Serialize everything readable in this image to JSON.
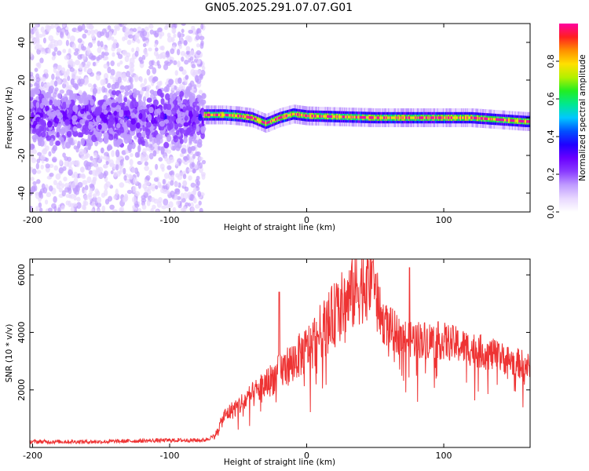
{
  "title": "GN05.2025.291.07.07.G01",
  "chart_data": [
    {
      "type": "heatmap",
      "name": "spectrogram",
      "title": "GN05.2025.291.07.07.G01",
      "xlabel": "Height of straight line (km)",
      "ylabel": "Frequency (Hz)",
      "xlim": [
        -202,
        163
      ],
      "ylim": [
        -50,
        50
      ],
      "xticks": [
        -200,
        -100,
        0,
        100
      ],
      "yticks": [
        -40,
        -20,
        0,
        20,
        40
      ],
      "colorbar": {
        "label": "Normalized spectral amplitude",
        "range": [
          0,
          1
        ],
        "ticks": [
          0.0,
          0.2,
          0.4,
          0.6,
          0.8
        ],
        "colormap": [
          "#ffffff",
          "#e8d8ff",
          "#c09cff",
          "#8a3cff",
          "#6a00ff",
          "#2000ff",
          "#0050ff",
          "#00c8ff",
          "#00e890",
          "#22ee22",
          "#b4f000",
          "#ffe000",
          "#ff9000",
          "#ff2020",
          "#ff00a0"
        ]
      },
      "segments": [
        {
          "x_range": [
            -202,
            -75
          ],
          "description": "noise",
          "center_hz": 0,
          "core_halfwidth_hz": 12,
          "scatter_halfwidth_hz": 50,
          "peak_amplitude": 0.45
        },
        {
          "x_range": [
            -75,
            163
          ],
          "description": "signal band",
          "peak_amplitude": 0.98
        },
        {
          "x_range": [
            -32,
            -28
          ],
          "description": "dip",
          "center_hz": -3
        }
      ],
      "signal_centerline": [
        {
          "x": -75,
          "hz": 1.5
        },
        {
          "x": -60,
          "hz": 1.5
        },
        {
          "x": -50,
          "hz": 1
        },
        {
          "x": -40,
          "hz": 0
        },
        {
          "x": -30,
          "hz": -3
        },
        {
          "x": -20,
          "hz": 0
        },
        {
          "x": -10,
          "hz": 2
        },
        {
          "x": 0,
          "hz": 1
        },
        {
          "x": 50,
          "hz": 0
        },
        {
          "x": 80,
          "hz": 0
        },
        {
          "x": 120,
          "hz": 0
        },
        {
          "x": 160,
          "hz": -2
        }
      ]
    },
    {
      "type": "line",
      "name": "snr",
      "xlabel": "Height of straight line (km)",
      "ylabel": "SNR (10 * v/v)",
      "xlim": [
        -202,
        163
      ],
      "ylim": [
        0,
        6550
      ],
      "xticks": [
        -200,
        -100,
        0,
        100
      ],
      "yticks": [
        2000,
        4000,
        6000
      ],
      "color": "#ee3333",
      "series_envelope": [
        {
          "x": -202,
          "y": 200
        },
        {
          "x": -180,
          "y": 200
        },
        {
          "x": -150,
          "y": 200
        },
        {
          "x": -100,
          "y": 250
        },
        {
          "x": -75,
          "y": 250
        },
        {
          "x": -67,
          "y": 400
        },
        {
          "x": -60,
          "y": 1100
        },
        {
          "x": -40,
          "y": 1800
        },
        {
          "x": -20,
          "y": 2600
        },
        {
          "x": 0,
          "y": 3400
        },
        {
          "x": 20,
          "y": 4600
        },
        {
          "x": 40,
          "y": 5700
        },
        {
          "x": 48,
          "y": 6000
        },
        {
          "x": 55,
          "y": 4400
        },
        {
          "x": 70,
          "y": 3800
        },
        {
          "x": 100,
          "y": 3700
        },
        {
          "x": 130,
          "y": 3300
        },
        {
          "x": 163,
          "y": 2800
        }
      ],
      "peaks": [
        {
          "x": -20,
          "y": 5400
        },
        {
          "x": 48,
          "y": 6450
        },
        {
          "x": 75,
          "y": 6250
        },
        {
          "x": 140,
          "y": 3600
        }
      ]
    }
  ]
}
